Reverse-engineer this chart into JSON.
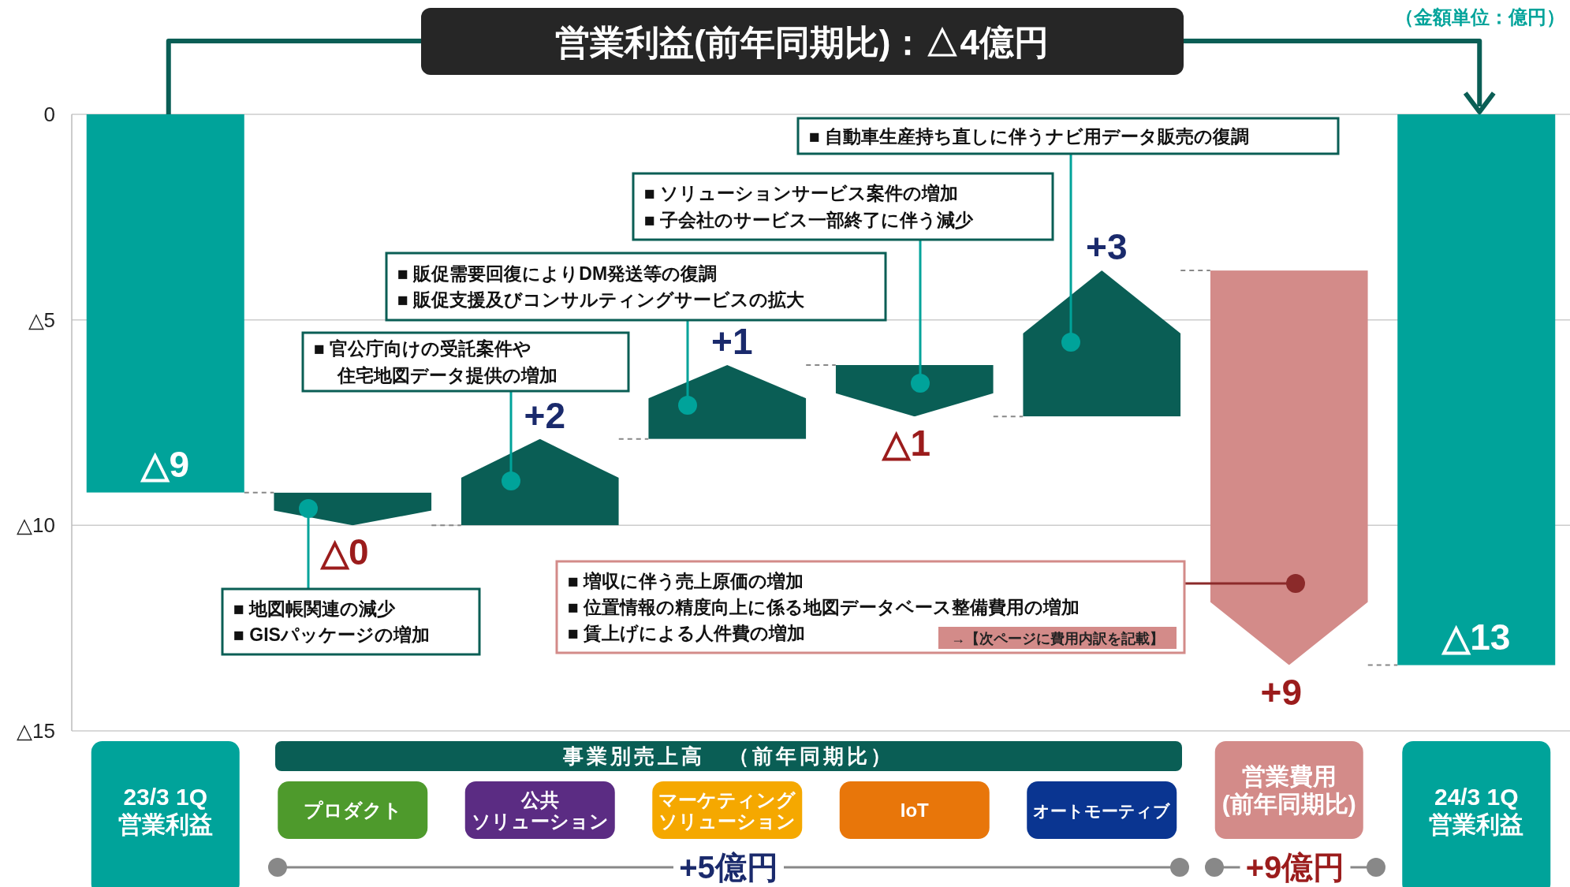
{
  "chart_data": {
    "type": "bar",
    "title": "営業利益(前年同期比)：△4億円",
    "categories": [
      "23/3 1Q\n営業利益",
      "プロダクト",
      "公共ソリューション",
      "マーケティングソリューション",
      "IoT",
      "オートモーティブ",
      "営業費用\n(前年同期比)",
      "24/3 1Q\n営業利益"
    ],
    "base": [
      0,
      -9.2,
      -10.0,
      -7.9,
      -6.1,
      -7.35,
      -3.8,
      0
    ],
    "values": [
      -9.2,
      -0.8,
      2.1,
      1.8,
      -1.25,
      3.55,
      -9.6,
      -13.4
    ],
    "colors": [
      "#00a39a",
      "#0a5e55",
      "#0a5e55",
      "#0a5e55",
      "#0a5e55",
      "#0a5e55",
      "#d38b89",
      "#00a39a"
    ],
    "ylim": [
      -15,
      0
    ],
    "yticks": [
      0,
      {
        "value": -5,
        "label": "△5"
      },
      {
        "value": -10,
        "label": "△10"
      },
      {
        "value": -15,
        "label": "△15"
      }
    ],
    "grid": "y",
    "annotations": [
      "（金額単位：億円）",
      "■ 地図帳関連の減少\n■ GISパッケージの増加",
      "■ 官公庁向けの受託案件や住宅地図データ提供の増加",
      "■ 販促需要回復によりDM発送等の復調\n■ 販促支援及びコンサルティングサービスの拡大",
      "■ ソリューションサービス案件の増加\n■ 子会社のサービス一部終了に伴う減少",
      "■ 自動車生産持ち直しに伴うナビ用データ販売の復調",
      "■ 増収に伴う売上原価の増加\n■ 位置情報の精度向上に係る地図データベース整備費用の増加\n■ 賃上げによる人件費の増加",
      "→【次ページに費用内訳を記載】",
      "事業別売上高　（前年同期比）",
      "+5億円",
      "+9億円",
      {
        "text": "△9",
        "x": "23/3 1Q\n営業利益",
        "y": -9.2
      },
      {
        "text": "△0",
        "x": "プロダクト",
        "y": -10.0
      },
      {
        "text": "+2",
        "x": "公共ソリューション",
        "y": -7.9
      },
      {
        "text": "+1",
        "x": "マーケティングソリューション",
        "y": -6.1
      },
      {
        "text": "△1",
        "x": "IoT",
        "y": -7.35
      },
      {
        "text": "+3",
        "x": "オートモーティブ",
        "y": -3.8
      },
      {
        "text": "+9",
        "x": "営業費用\n(前年同期比)",
        "y": -13.4
      },
      {
        "text": "△13",
        "x": "24/3 1Q\n営業利益",
        "y": -13.4
      }
    ]
  }
}
